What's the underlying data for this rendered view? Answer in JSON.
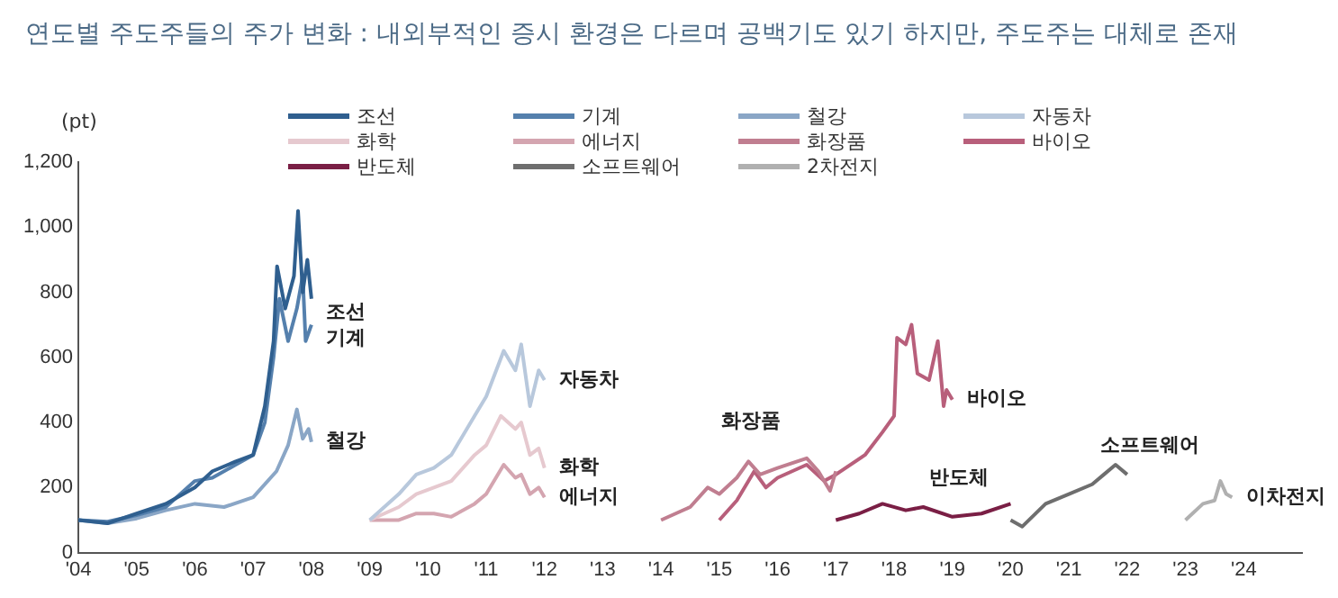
{
  "chart_data": {
    "type": "line",
    "title": "연도별 주도주들의 주가 변화 : 내외부적인 증시 환경은 다르며 공백기도 있기 하지만, 주도주는 대체로 존재",
    "ylabel": "(pt)",
    "xlim": [
      2004,
      2025
    ],
    "xticks": [
      {
        "value": 2004,
        "label": "'04"
      },
      {
        "value": 2005,
        "label": "'05"
      },
      {
        "value": 2006,
        "label": "'06"
      },
      {
        "value": 2007,
        "label": "'07"
      },
      {
        "value": 2008,
        "label": "'08"
      },
      {
        "value": 2009,
        "label": "'09"
      },
      {
        "value": 2010,
        "label": "'10"
      },
      {
        "value": 2011,
        "label": "'11"
      },
      {
        "value": 2012,
        "label": "'12"
      },
      {
        "value": 2013,
        "label": "'13"
      },
      {
        "value": 2014,
        "label": "'14"
      },
      {
        "value": 2015,
        "label": "'15"
      },
      {
        "value": 2016,
        "label": "'16"
      },
      {
        "value": 2017,
        "label": "'17"
      },
      {
        "value": 2018,
        "label": "'18"
      },
      {
        "value": 2019,
        "label": "'19"
      },
      {
        "value": 2020,
        "label": "'20"
      },
      {
        "value": 2021,
        "label": "'21"
      },
      {
        "value": 2022,
        "label": "'22"
      },
      {
        "value": 2023,
        "label": "'23"
      },
      {
        "value": 2024,
        "label": "'24"
      }
    ],
    "ylim": [
      0,
      1200
    ],
    "yticks": [
      {
        "value": 0,
        "label": "0"
      },
      {
        "value": 200,
        "label": "200"
      },
      {
        "value": 400,
        "label": "400"
      },
      {
        "value": 600,
        "label": "600"
      },
      {
        "value": 800,
        "label": "800"
      },
      {
        "value": 1000,
        "label": "1,000"
      },
      {
        "value": 1200,
        "label": "1,200"
      }
    ],
    "grid": false,
    "legend": "top",
    "marker": "none",
    "series": [
      {
        "name": "조선",
        "color": "#2f5f8f",
        "x": [
          2004,
          2004.5,
          2005,
          2005.5,
          2006,
          2006.3,
          2006.7,
          2007,
          2007.2,
          2007.35,
          2007.41,
          2007.55,
          2007.7,
          2007.77,
          2007.85,
          2007.93,
          2008
        ],
        "values": [
          100,
          90,
          120,
          150,
          200,
          250,
          280,
          300,
          450,
          650,
          880,
          750,
          850,
          1050,
          800,
          900,
          780
        ]
      },
      {
        "name": "기계",
        "color": "#5580ad",
        "x": [
          2004,
          2004.5,
          2005,
          2005.5,
          2006,
          2006.3,
          2006.7,
          2007,
          2007.2,
          2007.35,
          2007.45,
          2007.6,
          2007.75,
          2007.85,
          2007.9,
          2008
        ],
        "values": [
          100,
          95,
          115,
          140,
          220,
          230,
          270,
          300,
          400,
          600,
          780,
          650,
          750,
          850,
          650,
          700
        ]
      },
      {
        "name": "철강",
        "color": "#8aa6c6",
        "x": [
          2004,
          2004.5,
          2005,
          2005.5,
          2006,
          2006.5,
          2007,
          2007.4,
          2007.6,
          2007.75,
          2007.85,
          2007.95,
          2008
        ],
        "values": [
          100,
          90,
          105,
          130,
          150,
          140,
          170,
          250,
          330,
          440,
          350,
          380,
          340
        ]
      },
      {
        "name": "자동차",
        "color": "#b8c8dc",
        "x": [
          2009,
          2009.5,
          2009.8,
          2010.1,
          2010.4,
          2010.8,
          2011,
          2011.3,
          2011.5,
          2011.6,
          2011.75,
          2011.9,
          2012
        ],
        "values": [
          100,
          180,
          240,
          260,
          300,
          420,
          480,
          620,
          560,
          640,
          450,
          560,
          530
        ]
      },
      {
        "name": "화학",
        "color": "#e6c9cf",
        "x": [
          2009,
          2009.5,
          2009.8,
          2010.1,
          2010.4,
          2010.8,
          2011,
          2011.25,
          2011.5,
          2011.6,
          2011.75,
          2011.9,
          2012
        ],
        "values": [
          100,
          140,
          180,
          200,
          220,
          300,
          330,
          420,
          380,
          400,
          300,
          320,
          260
        ]
      },
      {
        "name": "에너지",
        "color": "#d4a5b0",
        "x": [
          2009,
          2009.5,
          2009.8,
          2010.1,
          2010.4,
          2010.8,
          2011,
          2011.3,
          2011.5,
          2011.6,
          2011.75,
          2011.9,
          2012
        ],
        "values": [
          100,
          100,
          120,
          120,
          110,
          150,
          180,
          270,
          230,
          240,
          180,
          200,
          170
        ]
      },
      {
        "name": "화장품",
        "color": "#c07e90",
        "x": [
          2014,
          2014.5,
          2014.8,
          2015,
          2015.3,
          2015.5,
          2015.7,
          2016,
          2016.5,
          2016.7,
          2016.9,
          2017
        ],
        "values": [
          100,
          140,
          200,
          180,
          230,
          280,
          240,
          260,
          290,
          250,
          190,
          250
        ]
      },
      {
        "name": "바이오",
        "color": "#b85f7b",
        "x": [
          2015,
          2015.3,
          2015.6,
          2015.8,
          2016,
          2016.5,
          2016.8,
          2017,
          2017.5,
          2017.8,
          2018,
          2018.05,
          2018.2,
          2018.3,
          2018.4,
          2018.6,
          2018.75,
          2018.85,
          2018.9,
          2019
        ],
        "values": [
          100,
          160,
          250,
          200,
          230,
          270,
          220,
          240,
          300,
          370,
          420,
          660,
          640,
          700,
          550,
          530,
          650,
          450,
          500,
          470
        ]
      },
      {
        "name": "반도체",
        "color": "#7a1f45",
        "x": [
          2017,
          2017.4,
          2017.8,
          2018.2,
          2018.5,
          2019,
          2019.5,
          2020
        ],
        "values": [
          100,
          120,
          150,
          130,
          140,
          110,
          120,
          150
        ]
      },
      {
        "name": "소프트웨어",
        "color": "#6e6e6e",
        "x": [
          2020,
          2020.2,
          2020.6,
          2021,
          2021.4,
          2021.6,
          2021.8,
          2022
        ],
        "values": [
          100,
          80,
          150,
          180,
          210,
          240,
          270,
          240
        ]
      },
      {
        "name": "2차전지",
        "color": "#b0b0b0",
        "x": [
          2023,
          2023.3,
          2023.5,
          2023.6,
          2023.7,
          2023.8
        ],
        "values": [
          100,
          150,
          160,
          220,
          180,
          170
        ]
      }
    ],
    "annotations": [
      {
        "text": "조선",
        "x": 2008,
        "y": 780
      },
      {
        "text": "기계",
        "x": 2008,
        "y": 700
      },
      {
        "text": "철강",
        "x": 2008,
        "y": 340
      },
      {
        "text": "자동차",
        "x": 2012,
        "y": 530
      },
      {
        "text": "화학",
        "x": 2012,
        "y": 260
      },
      {
        "text": "에너지",
        "x": 2012,
        "y": 170
      },
      {
        "text": "화장품",
        "x": 2015.5,
        "y": 280
      },
      {
        "text": "바이오",
        "x": 2019,
        "y": 470
      },
      {
        "text": "반도체",
        "x": 2020,
        "y": 150
      },
      {
        "text": "소프트웨어",
        "x": 2022,
        "y": 240
      },
      {
        "text": "이차전지",
        "x": 2023.8,
        "y": 170
      }
    ]
  }
}
